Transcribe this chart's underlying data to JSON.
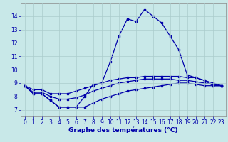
{
  "hours": [
    0,
    1,
    2,
    3,
    4,
    5,
    6,
    7,
    8,
    9,
    10,
    11,
    12,
    13,
    14,
    15,
    16,
    17,
    18,
    19,
    20,
    21,
    22,
    23
  ],
  "temp_main": [
    8.8,
    8.2,
    8.2,
    7.7,
    7.2,
    7.2,
    7.2,
    8.0,
    8.9,
    9.0,
    10.6,
    12.5,
    13.8,
    13.6,
    14.5,
    14.0,
    13.5,
    12.5,
    11.5,
    9.6,
    9.4,
    9.2,
    8.8,
    8.8
  ],
  "temp_min": [
    8.8,
    8.2,
    8.2,
    7.7,
    7.2,
    7.2,
    7.2,
    7.2,
    7.5,
    7.8,
    8.0,
    8.2,
    8.4,
    8.5,
    8.6,
    8.7,
    8.8,
    8.9,
    9.0,
    9.0,
    8.9,
    8.8,
    8.8,
    8.8
  ],
  "temp_max": [
    8.8,
    8.5,
    8.5,
    8.2,
    8.2,
    8.2,
    8.4,
    8.6,
    8.8,
    9.0,
    9.2,
    9.3,
    9.4,
    9.4,
    9.5,
    9.5,
    9.5,
    9.5,
    9.5,
    9.4,
    9.4,
    9.2,
    9.0,
    8.8
  ],
  "temp_avg": [
    8.8,
    8.3,
    8.3,
    8.0,
    7.8,
    7.8,
    7.9,
    8.1,
    8.4,
    8.6,
    8.8,
    9.0,
    9.1,
    9.2,
    9.3,
    9.3,
    9.3,
    9.3,
    9.2,
    9.2,
    9.1,
    9.0,
    8.9,
    8.8
  ],
  "line_color": "#0000aa",
  "bg_color": "#c8e8e8",
  "grid_color": "#aacccc",
  "xlabel": "Graphe des températures (°C)",
  "ylim": [
    6.5,
    15.0
  ],
  "xlim": [
    -0.5,
    23.5
  ],
  "yticks": [
    7,
    8,
    9,
    10,
    11,
    12,
    13,
    14
  ],
  "xticks": [
    0,
    1,
    2,
    3,
    4,
    5,
    6,
    7,
    8,
    9,
    10,
    11,
    12,
    13,
    14,
    15,
    16,
    17,
    18,
    19,
    20,
    21,
    22,
    23
  ],
  "tick_fontsize": 5.5,
  "xlabel_fontsize": 6.5,
  "linewidth": 0.9,
  "markersize": 2.0
}
